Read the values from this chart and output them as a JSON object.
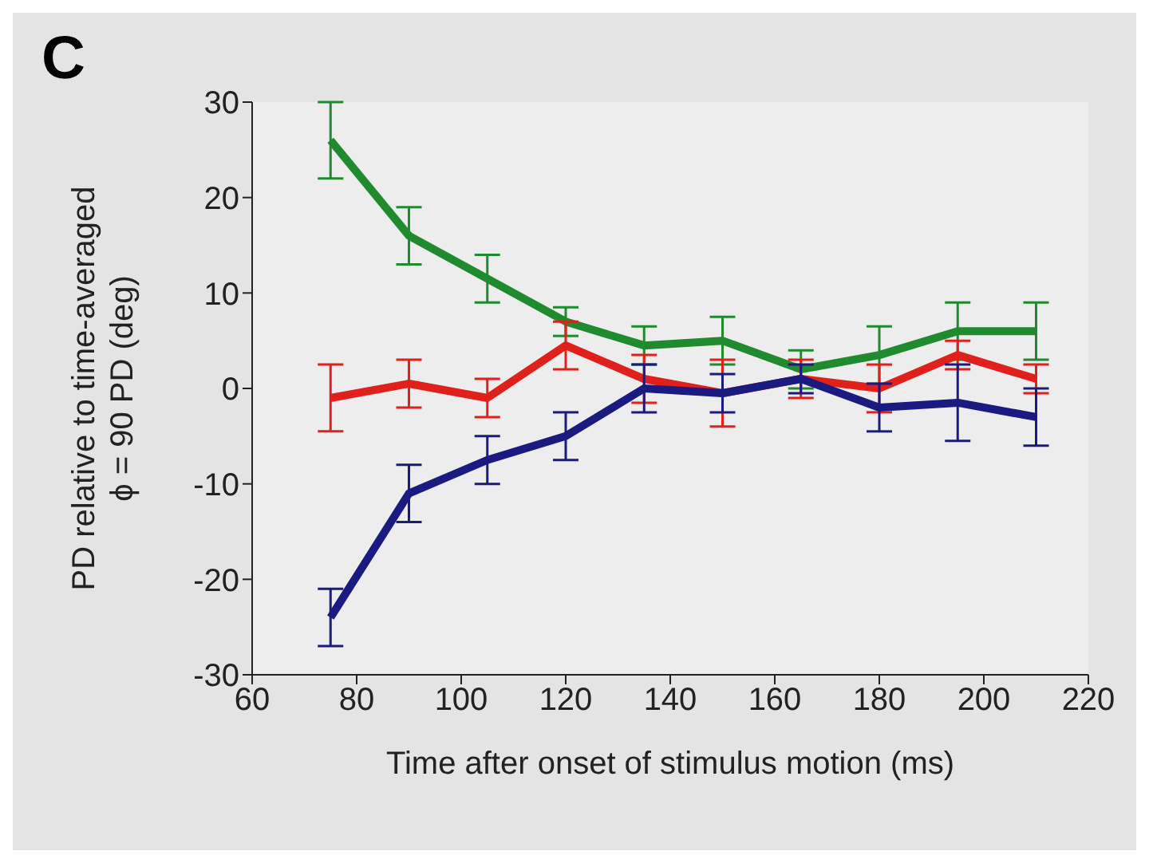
{
  "chart_data": {
    "type": "line",
    "xlabel": "Time after onset of stimulus motion (ms)",
    "ylabel": "PD relative to time-averaged\nϕ = 90 PD (deg)",
    "annotations": [
      "C"
    ],
    "x": [
      75,
      90,
      105,
      120,
      135,
      150,
      165,
      180,
      195,
      210
    ],
    "xlim": [
      60,
      220
    ],
    "xticks": [
      60,
      80,
      100,
      120,
      140,
      160,
      180,
      200,
      220
    ],
    "ylim": [
      -30,
      30
    ],
    "yticks": [
      -30,
      -20,
      -10,
      0,
      10,
      20,
      30
    ],
    "grid": false,
    "legend": false,
    "marker": "none",
    "line_style": "solid",
    "series": [
      {
        "color": "#1f8a2e",
        "values": [
          26,
          16,
          11.5,
          7,
          4.5,
          5,
          2,
          3.5,
          6,
          6
        ],
        "errors": [
          4,
          3,
          2.5,
          1.5,
          2,
          2.5,
          2,
          3,
          3,
          3
        ]
      },
      {
        "color": "#e0201a",
        "values": [
          -1,
          0.5,
          -1,
          4.5,
          1,
          -0.5,
          1,
          0,
          3.5,
          1
        ],
        "errors": [
          3.5,
          2.5,
          2,
          2.5,
          2.5,
          3.5,
          2,
          2.5,
          1.5,
          1.5
        ]
      },
      {
        "color": "#1a1a80",
        "values": [
          -24,
          -11,
          -7.5,
          -5,
          0,
          -0.5,
          1,
          -2,
          -1.5,
          -3
        ],
        "errors": [
          3,
          3,
          2.5,
          2.5,
          2.5,
          2,
          1.5,
          2.5,
          4,
          3
        ]
      }
    ]
  }
}
